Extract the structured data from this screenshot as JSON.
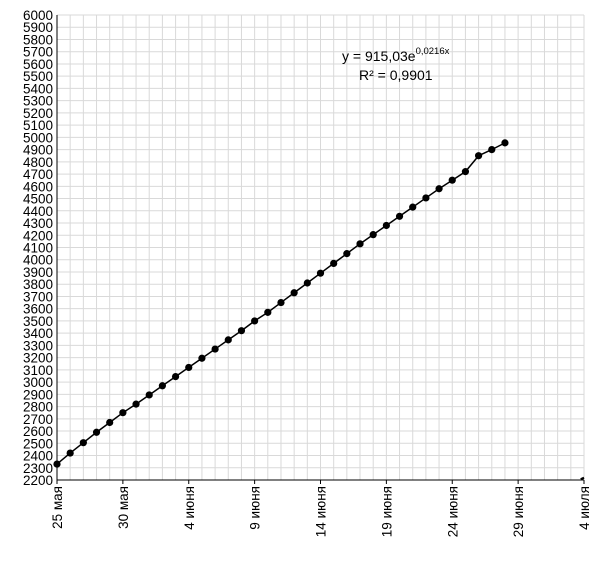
{
  "chart_data": {
    "type": "scatter",
    "title": "",
    "xlabel": "",
    "ylabel": "",
    "ylim": [
      2200,
      6000
    ],
    "ytick_step": 100,
    "xlim": [
      "2020-05-25",
      "2020-07-04"
    ],
    "xtick_dates": [
      "2020-05-25",
      "2020-05-30",
      "2020-06-04",
      "2020-06-09",
      "2020-06-14",
      "2020-06-19",
      "2020-06-24",
      "2020-06-29",
      "2020-07-04"
    ],
    "xtick_labels": [
      "25 мая",
      "30 мая",
      "4 июня",
      "9 июня",
      "14 июня",
      "19 июня",
      "24 июня",
      "29 июня",
      "4 июля"
    ],
    "grid": true,
    "series": [
      {
        "style": "solid line with round markers",
        "points": [
          [
            "2020-05-25",
            2330
          ],
          [
            "2020-05-26",
            2420
          ],
          [
            "2020-05-27",
            2505
          ],
          [
            "2020-05-28",
            2590
          ],
          [
            "2020-05-29",
            2670
          ],
          [
            "2020-05-30",
            2750
          ],
          [
            "2020-05-31",
            2820
          ],
          [
            "2020-06-01",
            2895
          ],
          [
            "2020-06-02",
            2970
          ],
          [
            "2020-06-03",
            3045
          ],
          [
            "2020-06-04",
            3120
          ],
          [
            "2020-06-05",
            3195
          ],
          [
            "2020-06-06",
            3270
          ],
          [
            "2020-06-07",
            3345
          ],
          [
            "2020-06-08",
            3420
          ],
          [
            "2020-06-09",
            3500
          ],
          [
            "2020-06-10",
            3570
          ],
          [
            "2020-06-11",
            3650
          ],
          [
            "2020-06-12",
            3730
          ],
          [
            "2020-06-13",
            3810
          ],
          [
            "2020-06-14",
            3890
          ],
          [
            "2020-06-15",
            3970
          ],
          [
            "2020-06-16",
            4050
          ],
          [
            "2020-06-17",
            4130
          ],
          [
            "2020-06-18",
            4205
          ],
          [
            "2020-06-19",
            4280
          ],
          [
            "2020-06-20",
            4355
          ],
          [
            "2020-06-21",
            4430
          ],
          [
            "2020-06-22",
            4505
          ],
          [
            "2020-06-23",
            4580
          ],
          [
            "2020-06-24",
            4650
          ],
          [
            "2020-06-25",
            4720
          ],
          [
            "2020-06-26",
            4850
          ],
          [
            "2020-06-27",
            4900
          ],
          [
            "2020-06-28",
            4955
          ]
        ]
      },
      {
        "style": "dashed exponential trendline",
        "trendline": {
          "type": "exponential",
          "a": 915.03,
          "b": 0.0216,
          "x_start": 1,
          "x_end": 41
        }
      }
    ],
    "annotations": {
      "equation_main": "y = 915,03e",
      "equation_exp": "0,0216x",
      "r_squared": "R² = 0,9901"
    },
    "colors": {
      "series": "#000000",
      "grid": "#d9d9d9",
      "axis": "#000000"
    }
  }
}
